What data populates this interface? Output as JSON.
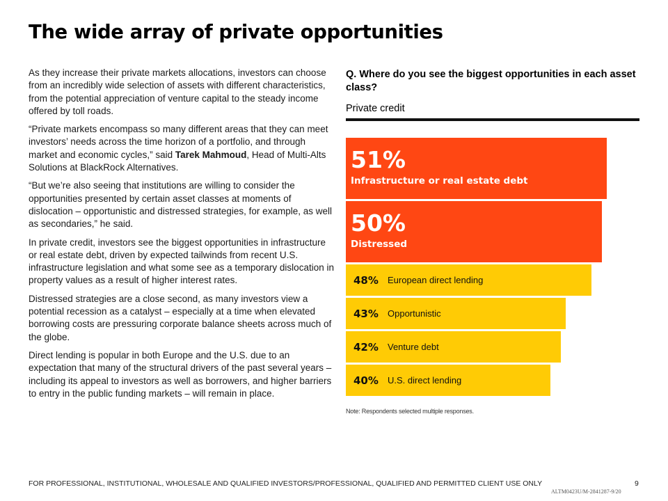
{
  "title": "The wide array of private opportunities",
  "paragraphs": [
    "As they increase their private markets allocations, investors can choose from an incredibly wide selection of assets with different characteristics, from the potential appreciation of venture capital to the steady income offered by toll roads.",
    "“Private markets encompass so many different areas that they can meet investors’ needs across the time horizon of a portfolio, and through market and economic cycles,” said ",
    "Tarek Mahmoud",
    ", Head of Multi-Alts Solutions at BlackRock Alternatives.",
    "“But we’re also seeing that institutions are willing to consider the opportunities presented by certain asset classes at moments of dislocation – opportunistic and distressed strategies, for example, as well as secondaries,” he said.",
    "In private credit, investors see the biggest opportunities in infrastructure or real estate debt, driven by expected tailwinds from recent U.S. infrastructure legislation and what some see as a temporary dislocation in property values as a result of higher interest rates.",
    "Distressed strategies are a close second, as many investors view a potential recession as a catalyst – especially at a time when elevated borrowing costs are pressuring corporate balance sheets across much of the globe.",
    "Direct lending is popular in both Europe and the U.S. due to an expectation that many of the structural drivers of the past several years – including its appeal to investors as well as borrowers, and higher barriers to entry in the public funding markets – will remain in place."
  ],
  "chart_data": {
    "type": "bar",
    "orientation": "horizontal",
    "title": "Q. Where do you see the biggest opportunities in each asset class?",
    "subtitle": "Private credit",
    "categories": [
      "Infrastructure or real estate debt",
      "Distressed",
      "European direct lending",
      "Opportunistic",
      "Venture debt",
      "U.S. direct lending"
    ],
    "values": [
      51,
      50,
      48,
      43,
      42,
      40
    ],
    "value_labels": [
      "51%",
      "50%",
      "48%",
      "43%",
      "42%",
      "40%"
    ],
    "highlight_count": 2,
    "colors": {
      "highlight": "#ff4713",
      "default": "#ffcb05"
    },
    "note": "Note: Respondents selected multiple responses."
  },
  "footer": {
    "disclaimer": "FOR PROFESSIONAL, INSTITUTIONAL, WHOLESALE AND QUALIFIED INVESTORS/PROFESSIONAL, QUALIFIED AND PERMITTED CLIENT USE ONLY",
    "page_number": "9",
    "code": "ALTM0423U/M-2841287-9/20"
  }
}
